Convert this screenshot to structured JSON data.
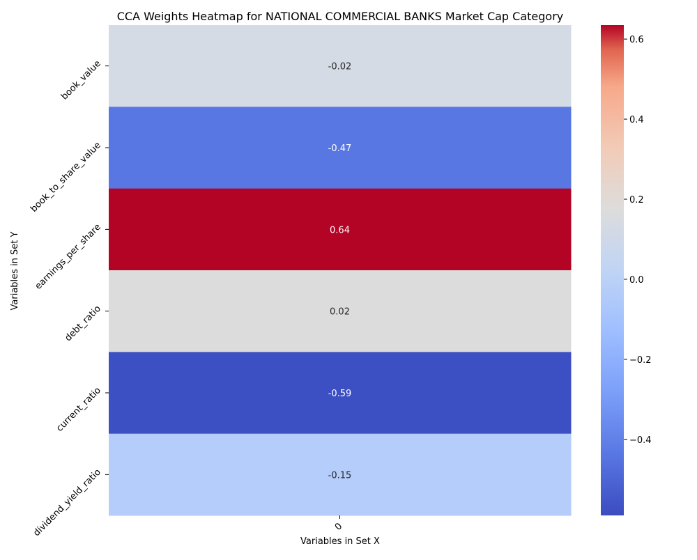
{
  "chart_data": {
    "type": "heatmap",
    "title": "CCA Weights Heatmap for NATIONAL COMMERCIAL BANKS Market Cap Category",
    "xlabel": "Variables in Set X",
    "ylabel": "Variables in Set Y",
    "x_categories": [
      "0"
    ],
    "y_categories": [
      "book_value",
      "book_to_share_value",
      "earnings_per_share",
      "debt_ratio",
      "current_ratio",
      "dividend_yield_ratio"
    ],
    "values": [
      [
        -0.02
      ],
      [
        -0.47
      ],
      [
        0.64
      ],
      [
        0.02
      ],
      [
        -0.59
      ],
      [
        -0.15
      ]
    ],
    "value_labels": [
      "-0.02",
      "-0.47",
      "0.64",
      "0.02",
      "-0.59",
      "-0.15"
    ],
    "colorbar": {
      "colormap": "coolwarm",
      "vmin": -0.59,
      "vmax": 0.635,
      "ticks": [
        0.6,
        0.4,
        0.2,
        0.0,
        -0.2,
        -0.4
      ],
      "tick_labels": [
        "0.6",
        "0.4",
        "0.2",
        "0.0",
        "−0.2",
        "−0.4"
      ]
    },
    "colors": {
      "book_value": "#d5dbe5",
      "book_to_share_value": "#5977e3",
      "earnings_per_share": "#b40426",
      "debt_ratio": "#dddcdc",
      "current_ratio": "#3d50c3",
      "dividend_yield_ratio": "#b5cdfa"
    }
  }
}
